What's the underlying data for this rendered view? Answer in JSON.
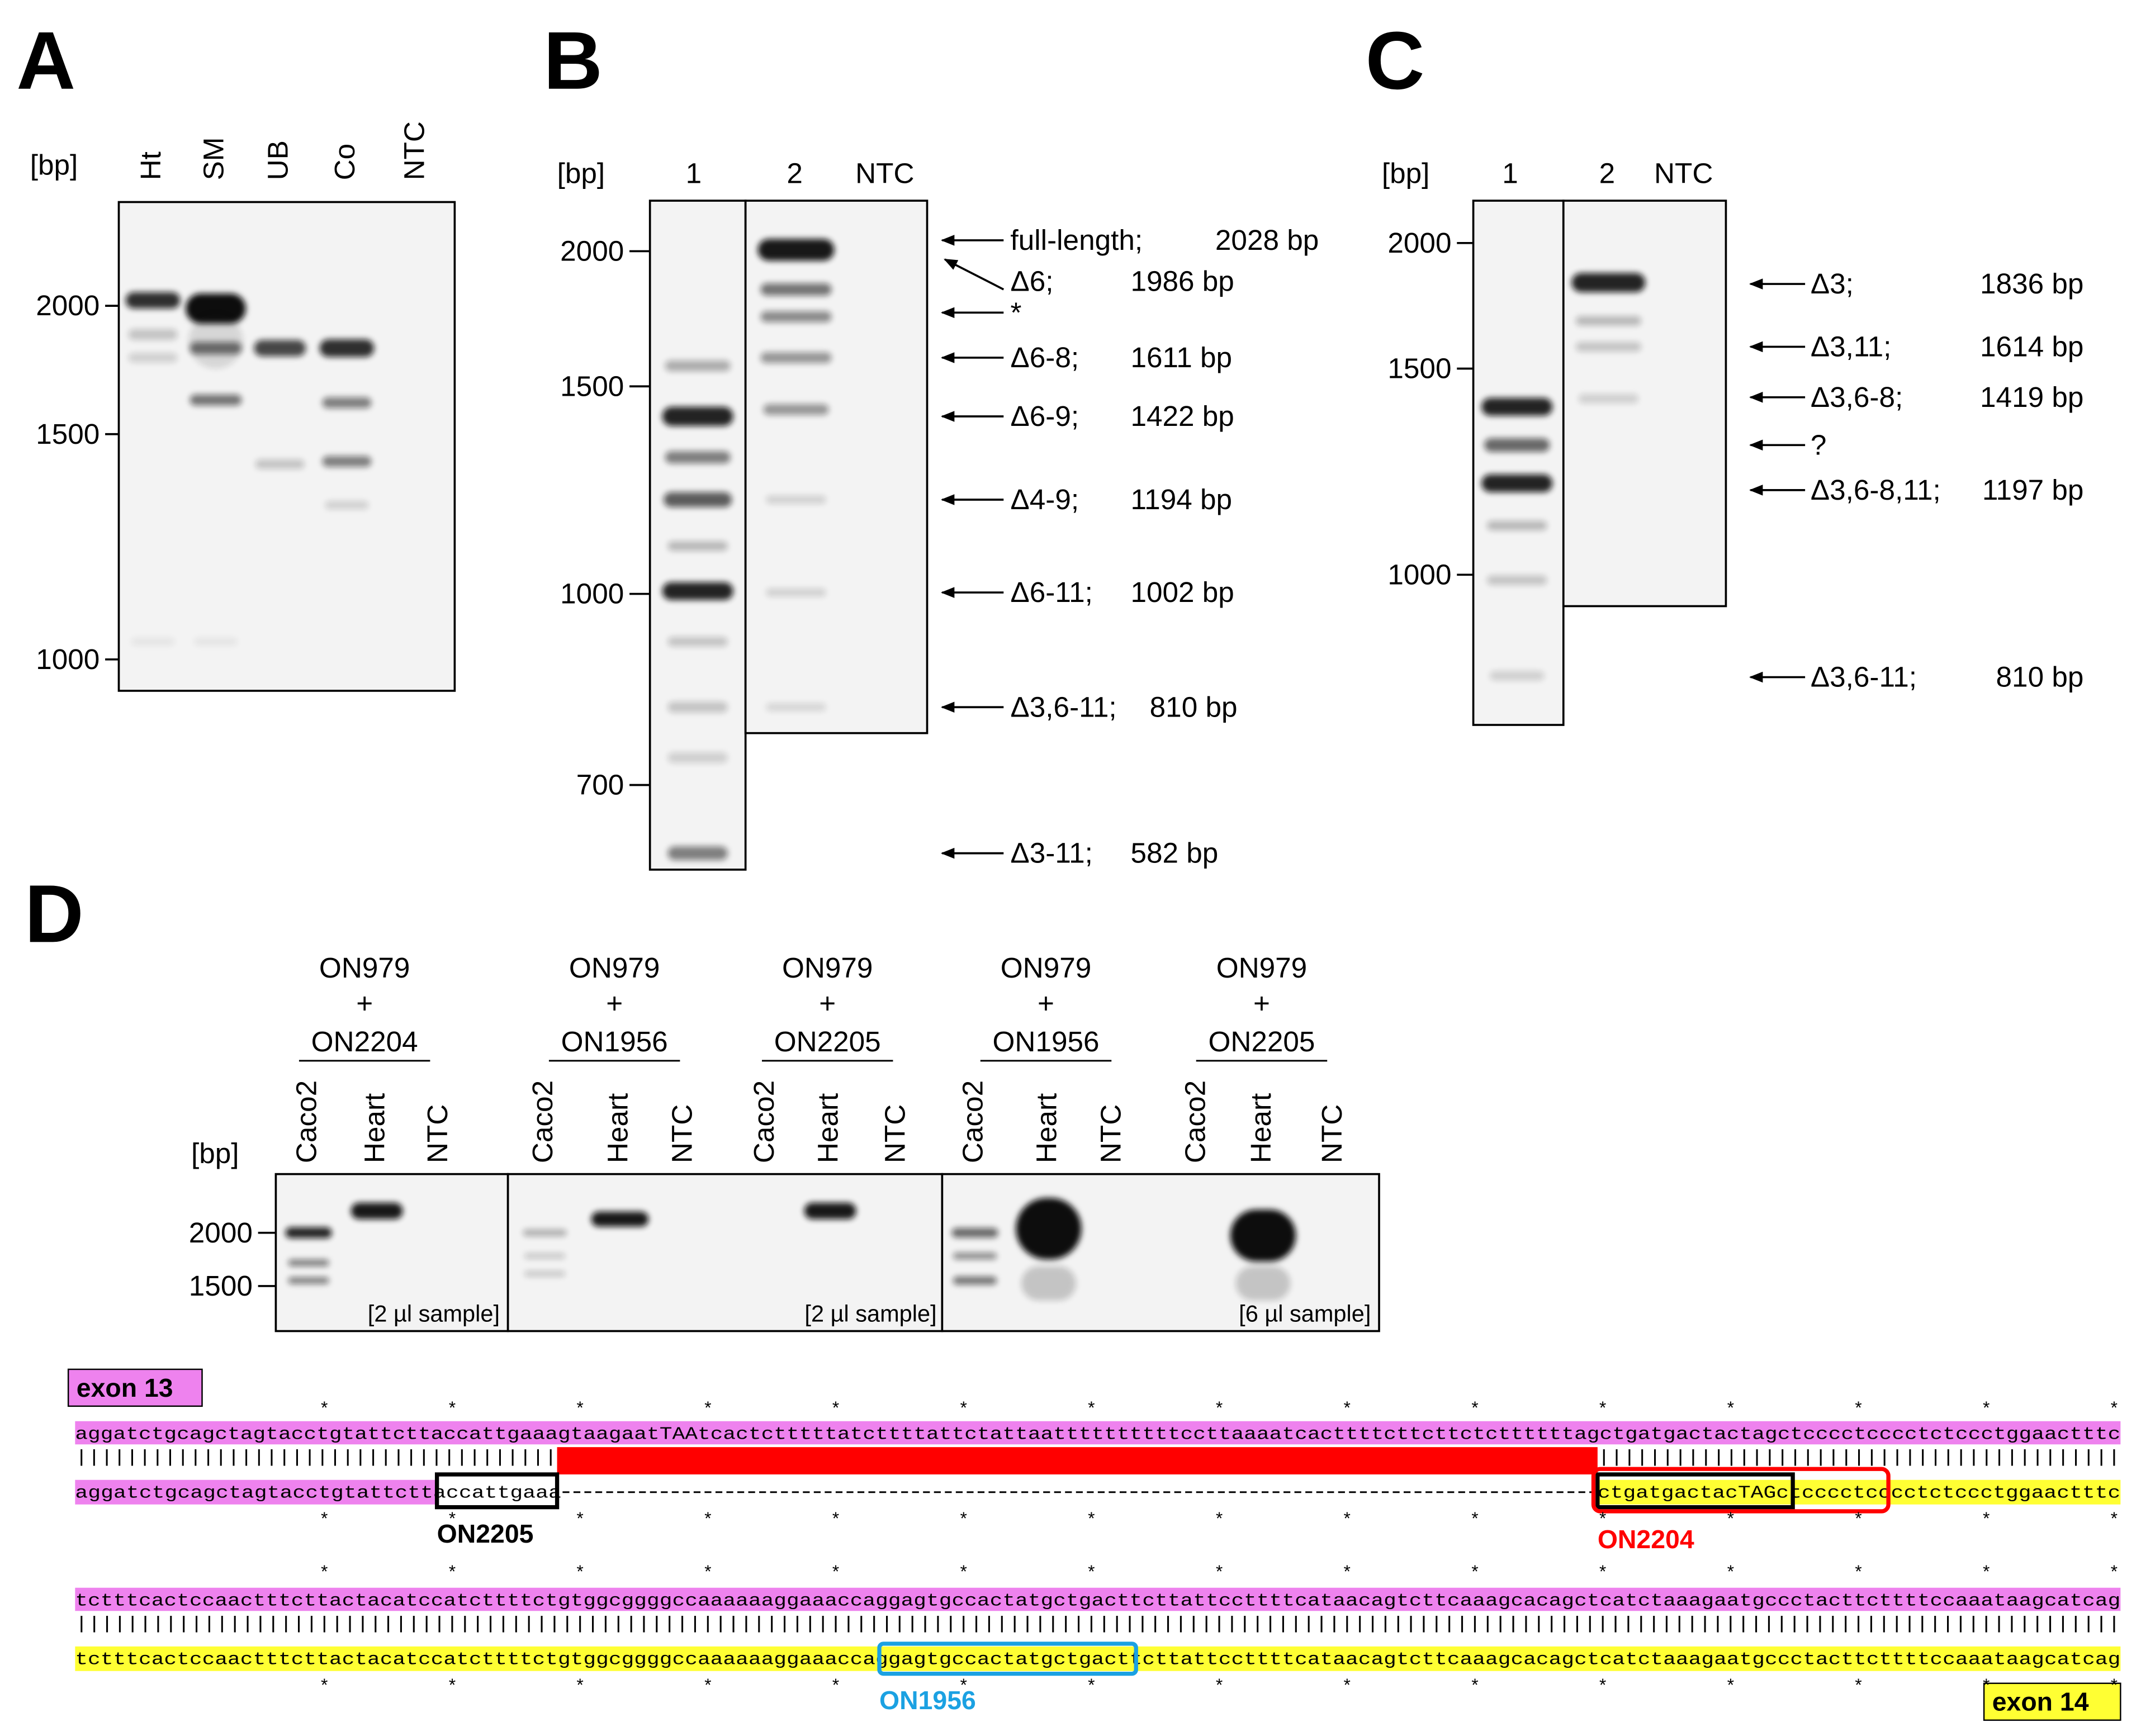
{
  "panels": {
    "A": {
      "label": "A",
      "unit": "[bp]",
      "lanes": [
        "Ht",
        "SM",
        "UB",
        "Co",
        "NTC"
      ],
      "size_markers": [
        "2000",
        "1500",
        "1000"
      ]
    },
    "B": {
      "label": "B",
      "unit": "[bp]",
      "lanes": [
        "1",
        "2",
        "NTC"
      ],
      "size_markers": [
        "2000",
        "1500",
        "1000",
        "700"
      ],
      "annotations": [
        {
          "name": "full-length;",
          "size": "2028 bp"
        },
        {
          "name": "Δ6;",
          "size": "1986 bp"
        },
        {
          "name": "*"
        },
        {
          "name": "Δ6-8;",
          "size": "1611 bp"
        },
        {
          "name": "Δ6-9;",
          "size": "1422 bp"
        },
        {
          "name": "Δ4-9;",
          "size": "1194 bp"
        },
        {
          "name": "Δ6-11;",
          "size": "1002 bp"
        },
        {
          "name": "Δ3,6-11;",
          "size": "810 bp"
        },
        {
          "name": "Δ3-11;",
          "size": "582 bp"
        }
      ]
    },
    "C": {
      "label": "C",
      "unit": "[bp]",
      "lanes": [
        "1",
        "2",
        "NTC"
      ],
      "size_markers": [
        "2000",
        "1500",
        "1000"
      ],
      "annotations": [
        {
          "name": "Δ3;",
          "size": "1836 bp"
        },
        {
          "name": "Δ3,11;",
          "size": "1614 bp"
        },
        {
          "name": "Δ3,6-8;",
          "size": "1419 bp"
        },
        {
          "name": "?"
        },
        {
          "name": "Δ3,6-8,11;",
          "size": "1197 bp"
        },
        {
          "name": "Δ3,6-11;",
          "size": "810 bp"
        }
      ]
    },
    "D": {
      "label": "D",
      "unit": "[bp]",
      "size_markers": [
        "2000",
        "1500"
      ],
      "primer_pairs": [
        {
          "forward": "ON979",
          "plus": "+",
          "reverse": "ON2204"
        },
        {
          "forward": "ON979",
          "plus": "+",
          "reverse": "ON1956"
        },
        {
          "forward": "ON979",
          "plus": "+",
          "reverse": "ON2205"
        },
        {
          "forward": "ON979",
          "plus": "+",
          "reverse": "ON1956"
        },
        {
          "forward": "ON979",
          "plus": "+",
          "reverse": "ON2205"
        }
      ],
      "lanes": [
        [
          "Caco2",
          "Heart",
          "NTC"
        ],
        [
          "Caco2",
          "Heart",
          "NTC"
        ],
        [
          "Caco2",
          "Heart",
          "NTC"
        ],
        [
          "Caco2",
          "Heart",
          "NTC"
        ],
        [
          "Caco2",
          "Heart",
          "NTC"
        ]
      ],
      "sample_notes": [
        "[2 µl sample]",
        "[2 µl sample]",
        "[6 µl sample]"
      ]
    }
  },
  "alignment": {
    "exon_top": "exon 13",
    "exon_bottom": "exon 14",
    "position_mark": "*",
    "row1": {
      "top": "aggatctgcagctagtacctgtattcttaccattgaaagtaagaatTAAtcactctttttatcttttattctattaattttttttttccttaaaatcacttttcttcttctcttttttagctgatgactactagctcccctcccctctccctggaactttc",
      "match_left": "||||||||||||||||||||||||||||||||||||||",
      "match_right": "|||||||||||||||||||||||||||||||||||||||||",
      "bottom_left": "aggatctgcagctagtacctgtattcttaccattgaaa",
      "bottom_right": "ctgatgactacTAGctcccctcccctctccctggaactttc"
    },
    "row2": {
      "top": "tctttcactccaactttcttactacatccatcttttctgtggcggggccaaaaaaggaaaccaggagtgccactatgctgacttcttattccttttcataacagtcttcaaagcacagctcatctaaagaatgccctacttcttttccaaataagcatcag",
      "match": "||||||||||||||||||||||||||||||||||||||||||||||||||||||||||||||||||||||||||||||||||||||||||||||||||||||||||||||||||||||||||||||||||||||||||||||||||||||||||||||||",
      "bottom": "tctttcactccaactttcttactacatccatcttttctgtggcggggccaaaaaaggaaaccaggagtgccactatgctgacttcttattccttttcataacagtcttcaaagcacagctcatctaaagaatgccctacttcttttccaaataagcatcag"
    },
    "primers": {
      "ON2205": "ON2205",
      "ON2204": "ON2204",
      "ON1956": "ON1956"
    }
  }
}
